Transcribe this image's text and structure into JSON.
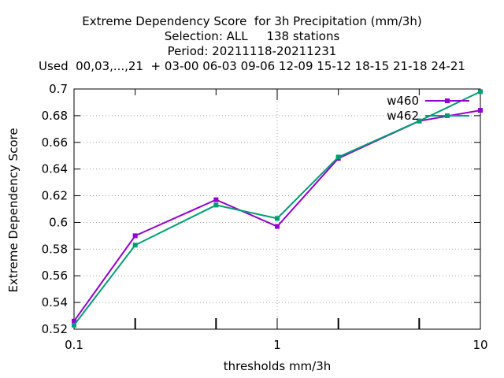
{
  "chart_data": {
    "type": "line",
    "title_lines": [
      "Extreme Dependency Score  for 3h Precipitation (mm/3h)",
      "Selection: ALL     138 stations",
      "Period: 20211118-20211231",
      "Used  00,03,...,21  + 03-00 06-03 09-06 12-09 15-12 18-15 21-18 24-21"
    ],
    "xlabel": "thresholds mm/3h",
    "ylabel": "Extreme Dependency Score",
    "x_scale": "log",
    "xlim": [
      0.1,
      10
    ],
    "ylim": [
      0.52,
      0.7
    ],
    "x_ticks": [
      0.1,
      1,
      10
    ],
    "x_tick_labels": [
      "0.1",
      "1",
      "10"
    ],
    "y_ticks": [
      0.52,
      0.54,
      0.56,
      0.58,
      0.6,
      0.62,
      0.64,
      0.66,
      0.68,
      0.7
    ],
    "y_tick_labels": [
      "0.52",
      "0.54",
      "0.56",
      "0.58",
      "0.6",
      "0.62",
      "0.64",
      "0.66",
      "0.68",
      "0.7"
    ],
    "x_minor_ticks": [
      0.2,
      0.5,
      2,
      5
    ],
    "grid": true,
    "legend_position": "top-right",
    "series": [
      {
        "name": "w460",
        "color": "#9400d3",
        "marker": "square",
        "x": [
          0.1,
          0.2,
          0.5,
          1,
          2,
          5,
          10
        ],
        "y": [
          0.526,
          0.59,
          0.617,
          0.597,
          0.648,
          0.676,
          0.684
        ]
      },
      {
        "name": "w462",
        "color": "#009e73",
        "marker": "square",
        "x": [
          0.1,
          0.2,
          0.5,
          1,
          2,
          5,
          10
        ],
        "y": [
          0.523,
          0.583,
          0.613,
          0.603,
          0.649,
          0.676,
          0.698
        ]
      }
    ]
  }
}
